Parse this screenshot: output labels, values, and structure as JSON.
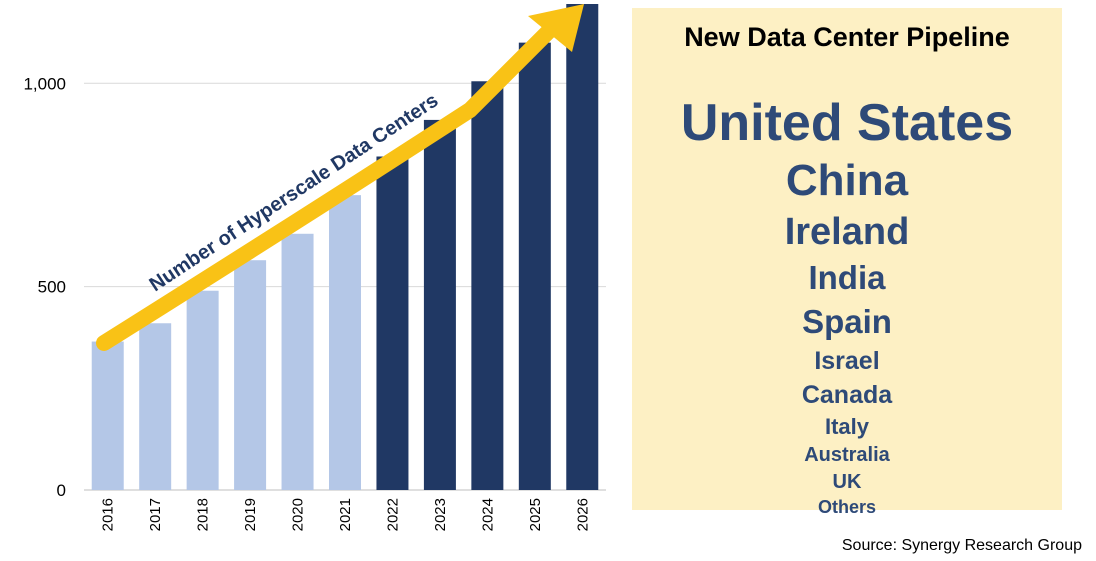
{
  "chart_data": {
    "type": "bar",
    "categories": [
      "2016",
      "2017",
      "2018",
      "2019",
      "2020",
      "2021",
      "2022",
      "2023",
      "2024",
      "2025",
      "2026"
    ],
    "values": [
      365,
      410,
      490,
      565,
      630,
      725,
      820,
      910,
      1005,
      1100,
      1195
    ],
    "ylim": [
      0,
      1195
    ],
    "yticks": [
      0,
      500,
      1000
    ],
    "ytick_labels": [
      "0",
      "500",
      "1,000"
    ],
    "grid": true,
    "annotation": "Number of Hyperscale Data Centers",
    "colors": {
      "actual": "#b4c7e7",
      "forecast": "#203864",
      "arrow": "#f9c216",
      "grid": "#d9d9d9"
    },
    "actual_count": 6
  },
  "pipeline": {
    "title": "New Data Center Pipeline",
    "countries": [
      "United States",
      "China",
      "Ireland",
      "India",
      "Spain",
      "Israel",
      "Canada",
      "Italy",
      "Australia",
      "UK",
      "Others"
    ]
  },
  "source": "Source: Synergy Research Group"
}
